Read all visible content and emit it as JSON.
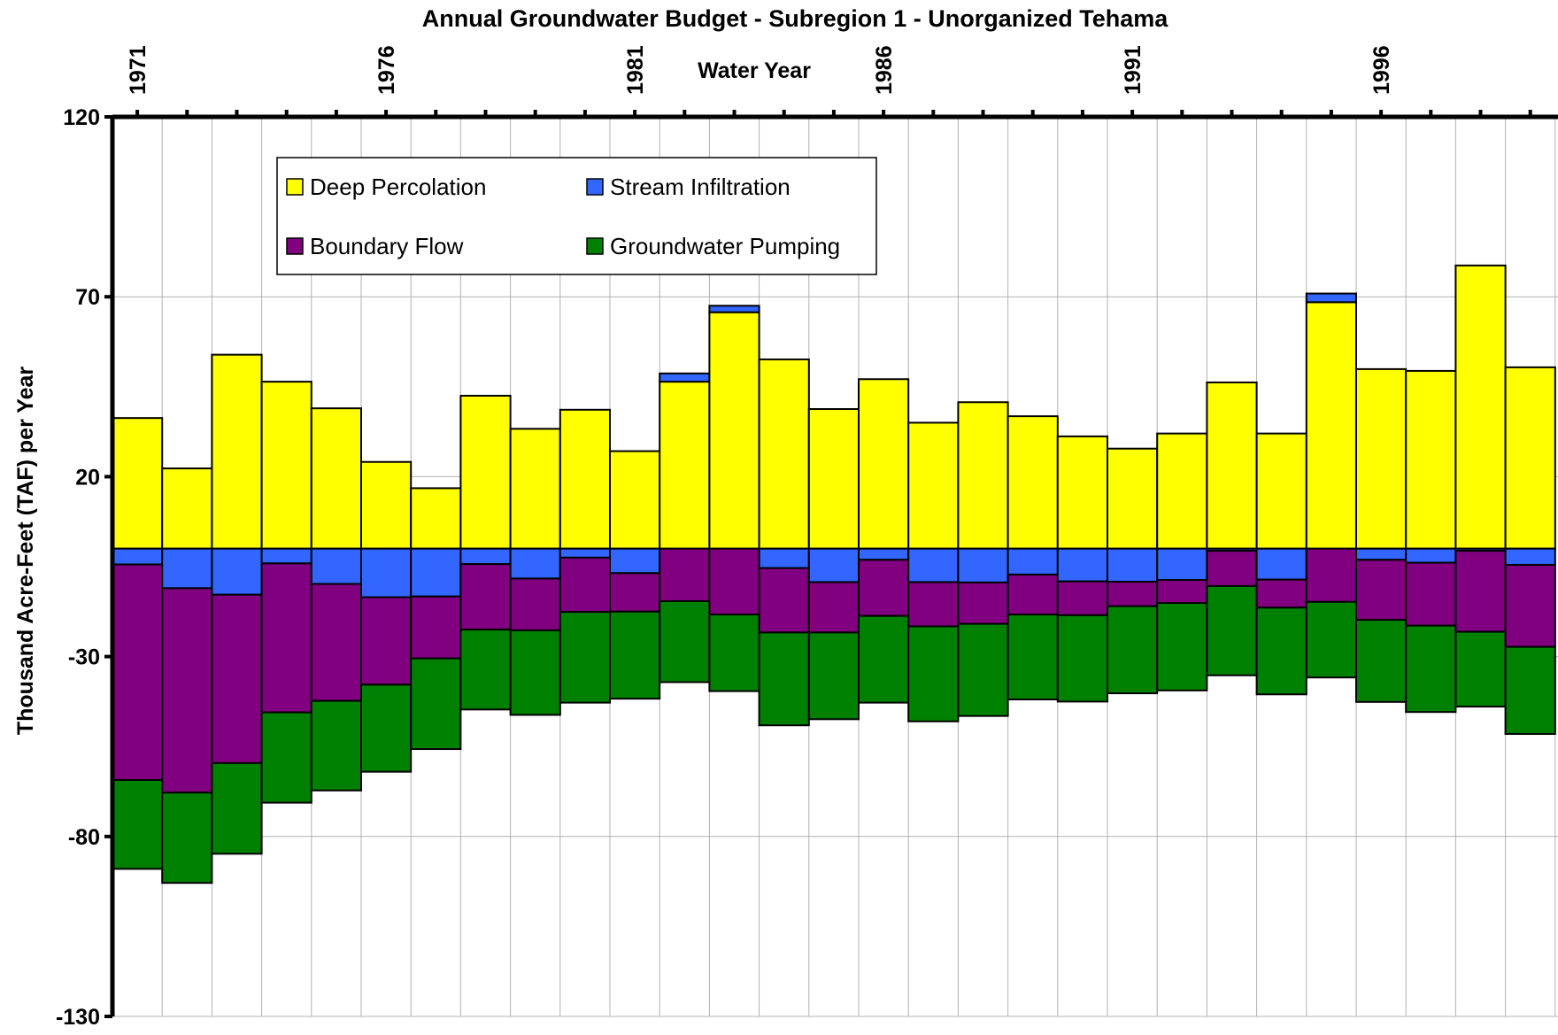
{
  "chart_data": {
    "type": "bar",
    "stacked": true,
    "title": "Annual Groundwater Budget - Subregion 1 - Unorganized Tehama",
    "xlabel": "Water Year",
    "ylabel": "Thousand Acre-Feet (TAF) per Year",
    "ylim": [
      -130,
      120
    ],
    "yticks": [
      120,
      70,
      20,
      -30,
      -80,
      -130
    ],
    "x_tick_labels": [
      "1971",
      "1976",
      "1981",
      "1986",
      "1991",
      "1996"
    ],
    "x_axis_position": "top",
    "grid": true,
    "legend_position": "top-left",
    "categories": [
      "1971",
      "1972",
      "1973",
      "1974",
      "1975",
      "1976",
      "1977",
      "1978",
      "1979",
      "1980",
      "1981",
      "1982",
      "1983",
      "1984",
      "1985",
      "1986",
      "1987",
      "1988",
      "1989",
      "1990",
      "1991",
      "1992",
      "1993",
      "1994",
      "1995",
      "1996",
      "1997",
      "1998",
      "1999"
    ],
    "series": [
      {
        "name": "Deep Percolation",
        "color": "#ffff00",
        "values": [
          36.3,
          22.3,
          53.9,
          46.4,
          39.0,
          24.1,
          16.8,
          42.5,
          33.3,
          38.6,
          27.1,
          46.4,
          65.7,
          52.6,
          38.8,
          47.1,
          35.0,
          40.7,
          36.8,
          31.2,
          27.8,
          32.0,
          46.2,
          32.0,
          68.5,
          49.9,
          49.4,
          78.7,
          50.4
        ]
      },
      {
        "name": "Stream Infiltration",
        "color": "#3366ff",
        "values": [
          -4.4,
          -11.0,
          -12.8,
          -4.1,
          -9.8,
          -13.5,
          -13.3,
          -4.3,
          -8.3,
          -2.5,
          -6.8,
          2.3,
          1.8,
          -5.4,
          -9.3,
          -3.1,
          -9.3,
          -9.4,
          -7.2,
          -9.1,
          -9.2,
          -8.7,
          -0.6,
          -8.6,
          2.4,
          -3.1,
          -3.9,
          -0.6,
          -4.5
        ]
      },
      {
        "name": "Boundary Flow",
        "color": "#800080",
        "values": [
          -59.9,
          -56.8,
          -46.8,
          -41.4,
          -32.5,
          -24.3,
          -17.2,
          -18.2,
          -14.4,
          -15.1,
          -10.7,
          -14.6,
          -18.3,
          -17.9,
          -14.0,
          -15.6,
          -12.3,
          -11.5,
          -11.1,
          -9.4,
          -6.8,
          -6.4,
          -9.8,
          -7.8,
          -14.8,
          -16.7,
          -17.5,
          -22.5,
          -22.8
        ]
      },
      {
        "name": "Groundwater Pumping",
        "color": "#008000",
        "values": [
          -24.7,
          -25.1,
          -25.2,
          -25.1,
          -24.9,
          -24.2,
          -25.2,
          -22.2,
          -23.5,
          -25.2,
          -24.2,
          -22.5,
          -21.3,
          -25.8,
          -24.1,
          -24.1,
          -26.4,
          -25.6,
          -23.6,
          -24.0,
          -24.2,
          -24.3,
          -24.8,
          -24.1,
          -21.0,
          -22.8,
          -24.0,
          -20.8,
          -24.2
        ]
      }
    ]
  }
}
